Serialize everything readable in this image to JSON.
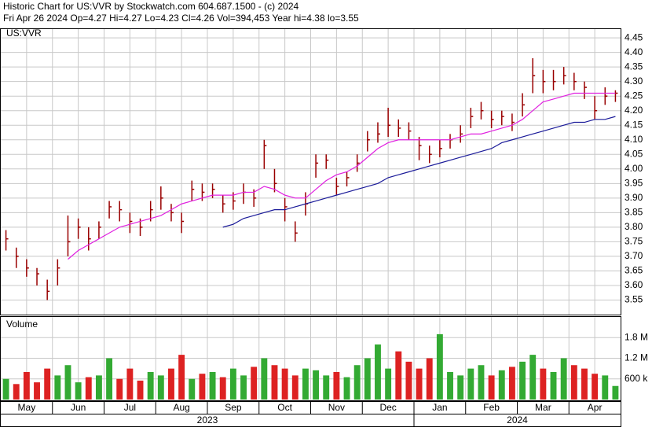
{
  "chart_data": {
    "type": "ohlc",
    "title": "Historic Chart for US:VVR by Stockwatch.com 604.687.1500 - (c) 2024",
    "subtitle": "Fri Apr 26 2024  Op=4.27  Hi=4.27  Lo=4.23  Cl=4.26  Vol=394,453  Year hi=4.38  lo=3.55",
    "symbol": "US:VVR",
    "volume_title": "Volume",
    "categories": [
      "May",
      null,
      null,
      null,
      null,
      "Jun",
      null,
      null,
      null,
      null,
      "Jul",
      null,
      null,
      null,
      null,
      "Aug",
      null,
      null,
      null,
      null,
      "Sep",
      null,
      null,
      null,
      null,
      "Oct",
      null,
      null,
      null,
      null,
      "Nov",
      null,
      null,
      null,
      null,
      "Dec",
      null,
      null,
      null,
      null,
      "Jan",
      null,
      null,
      null,
      null,
      "Feb",
      null,
      null,
      null,
      null,
      "Mar",
      null,
      null,
      null,
      null,
      "Apr",
      null,
      null,
      null,
      null
    ],
    "years": [
      "2023",
      "2024"
    ],
    "high": [
      3.79,
      3.73,
      3.69,
      3.66,
      3.62,
      3.69,
      3.84,
      3.83,
      3.8,
      3.82,
      3.89,
      3.89,
      3.85,
      3.83,
      3.89,
      3.94,
      3.88,
      3.85,
      3.96,
      3.95,
      3.95,
      3.91,
      3.92,
      3.95,
      3.93,
      4.1,
      4.0,
      3.9,
      3.82,
      3.92,
      4.05,
      4.05,
      3.97,
      3.99,
      4.05,
      4.13,
      4.16,
      4.21,
      4.17,
      4.16,
      4.11,
      4.08,
      4.1,
      4.12,
      4.15,
      4.21,
      4.23,
      4.2,
      4.2,
      4.19,
      4.26,
      4.38,
      4.34,
      4.34,
      4.35,
      4.33,
      4.3,
      4.25,
      4.28,
      4.27
    ],
    "low": [
      3.72,
      3.66,
      3.63,
      3.6,
      3.55,
      3.6,
      3.7,
      3.76,
      3.72,
      3.76,
      3.83,
      3.82,
      3.78,
      3.77,
      3.82,
      3.86,
      3.82,
      3.78,
      3.89,
      3.89,
      3.9,
      3.85,
      3.86,
      3.88,
      3.87,
      4.0,
      3.92,
      3.82,
      3.75,
      3.84,
      3.97,
      4.0,
      3.91,
      3.94,
      3.99,
      4.06,
      4.09,
      4.11,
      4.11,
      4.1,
      4.03,
      4.02,
      4.04,
      4.07,
      4.09,
      4.14,
      4.17,
      4.14,
      4.15,
      4.13,
      4.18,
      4.26,
      4.26,
      4.27,
      4.29,
      4.27,
      4.24,
      4.17,
      4.22,
      4.23
    ],
    "close": [
      3.76,
      3.7,
      3.66,
      3.64,
      3.58,
      3.66,
      3.75,
      3.8,
      3.76,
      3.8,
      3.87,
      3.86,
      3.82,
      3.8,
      3.86,
      3.9,
      3.85,
      3.82,
      3.93,
      3.92,
      3.93,
      3.88,
      3.89,
      3.92,
      3.9,
      4.08,
      3.95,
      3.87,
      3.78,
      3.88,
      4.02,
      4.03,
      3.94,
      3.97,
      4.02,
      4.1,
      4.12,
      4.15,
      4.14,
      4.13,
      4.08,
      4.05,
      4.07,
      4.1,
      4.12,
      4.18,
      4.2,
      4.17,
      4.18,
      4.16,
      4.22,
      4.32,
      4.3,
      4.3,
      4.32,
      4.3,
      4.28,
      4.2,
      4.25,
      4.26
    ],
    "bar_color": "#990000",
    "ma": [
      {
        "color": "#e020e0",
        "values": [
          null,
          null,
          null,
          null,
          null,
          null,
          3.69,
          3.72,
          3.74,
          3.76,
          3.78,
          3.8,
          3.81,
          3.82,
          3.83,
          3.84,
          3.86,
          3.88,
          3.89,
          3.9,
          3.91,
          3.91,
          3.91,
          3.92,
          3.92,
          3.94,
          3.93,
          3.91,
          3.9,
          3.9,
          3.93,
          3.96,
          3.98,
          3.99,
          4.01,
          4.04,
          4.07,
          4.09,
          4.1,
          4.1,
          4.1,
          4.1,
          4.1,
          4.1,
          4.11,
          4.12,
          4.12,
          4.13,
          4.14,
          4.15,
          4.17,
          4.2,
          4.23,
          4.24,
          4.25,
          4.26,
          4.26,
          4.26,
          4.26,
          4.26
        ]
      },
      {
        "color": "#1a1a99",
        "values": [
          null,
          null,
          null,
          null,
          null,
          null,
          null,
          null,
          null,
          null,
          null,
          null,
          null,
          null,
          null,
          null,
          null,
          null,
          null,
          null,
          null,
          3.8,
          3.81,
          3.83,
          3.84,
          3.85,
          3.86,
          3.86,
          3.87,
          3.88,
          3.89,
          3.9,
          3.91,
          3.92,
          3.93,
          3.94,
          3.95,
          3.97,
          3.98,
          3.99,
          4.0,
          4.01,
          4.02,
          4.03,
          4.04,
          4.05,
          4.06,
          4.07,
          4.09,
          4.1,
          4.11,
          4.12,
          4.13,
          4.14,
          4.15,
          4.16,
          4.16,
          4.17,
          4.17,
          4.18
        ]
      }
    ],
    "ylim": [
      3.5,
      4.48
    ],
    "yticks": [
      3.55,
      {
        "value": 3.6,
        "label": "3.60"
      },
      3.65,
      {
        "value": 3.7,
        "label": "3.70"
      },
      3.75,
      {
        "value": 3.8,
        "label": "3.80"
      },
      3.85,
      {
        "value": 3.9,
        "label": "3.90"
      },
      3.95,
      {
        "value": 4.0,
        "label": "4.00"
      },
      4.05,
      {
        "value": 4.1,
        "label": "4.10"
      },
      4.15,
      {
        "value": 4.2,
        "label": "4.20"
      },
      4.25,
      {
        "value": 4.3,
        "label": "4.30"
      },
      4.35,
      {
        "value": 4.4,
        "label": "4.40"
      },
      4.45
    ],
    "volume": [
      600000,
      450000,
      800000,
      500000,
      900000,
      700000,
      1000000,
      500000,
      650000,
      700000,
      1200000,
      600000,
      900000,
      550000,
      800000,
      700000,
      900000,
      1300000,
      600000,
      750000,
      800000,
      650000,
      900000,
      700000,
      950000,
      1200000,
      1000000,
      900000,
      700000,
      900000,
      850000,
      700000,
      800000,
      650000,
      1000000,
      1200000,
      1600000,
      900000,
      1400000,
      1100000,
      900000,
      1200000,
      1900000,
      800000,
      700000,
      900000,
      1000000,
      700000,
      850000,
      950000,
      1100000,
      1300000,
      900000,
      800000,
      1200000,
      1000000,
      900000,
      750000,
      700000,
      394453
    ],
    "up_color": "#33aa33",
    "down_color": "#dd2222",
    "vlim": [
      0,
      2400000
    ],
    "vticks": [
      {
        "value": 600000,
        "label": "600 k"
      },
      {
        "value": 1200000,
        "label": "1.2 M"
      },
      {
        "value": 1800000,
        "label": "1.8 M"
      }
    ],
    "grid": true
  }
}
